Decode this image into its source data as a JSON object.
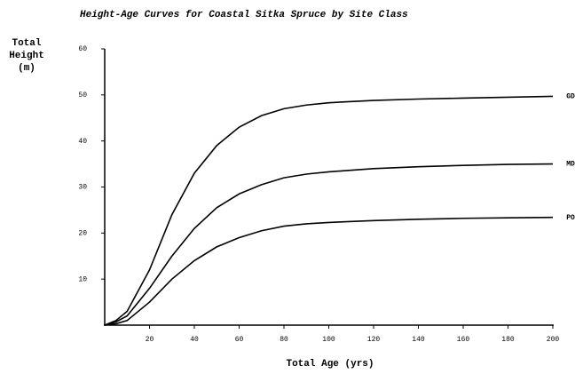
{
  "chart_data": {
    "type": "line",
    "title": "Height-Age Curves for Coastal Sitka Spruce by Site Class",
    "x_label": "Total Age (yrs)",
    "y_label": [
      "Total",
      "Height",
      "(m)"
    ],
    "x": [
      0,
      5,
      10,
      20,
      30,
      40,
      50,
      60,
      70,
      80,
      90,
      100,
      120,
      140,
      160,
      180,
      200
    ],
    "series": [
      {
        "name": "GD",
        "color": "#000000",
        "values": [
          0,
          1,
          3,
          12,
          24,
          33,
          39,
          43,
          45.5,
          47,
          47.8,
          48.3,
          48.8,
          49.1,
          49.3,
          49.5,
          49.7
        ]
      },
      {
        "name": "MD",
        "color": "#000000",
        "values": [
          0,
          0.7,
          2,
          8,
          15,
          21,
          25.5,
          28.5,
          30.5,
          32,
          32.8,
          33.3,
          34,
          34.4,
          34.7,
          34.9,
          35
        ]
      },
      {
        "name": "PO",
        "color": "#000000",
        "values": [
          0,
          0.3,
          1,
          5,
          10,
          14,
          17,
          19,
          20.5,
          21.5,
          22,
          22.3,
          22.7,
          23,
          23.2,
          23.3,
          23.4
        ]
      }
    ],
    "xlim": [
      0,
      200
    ],
    "xticks": [
      20,
      40,
      60,
      80,
      100,
      120,
      140,
      160,
      180,
      200
    ],
    "ylim": [
      0,
      60
    ],
    "yticks": [
      10,
      20,
      30,
      40,
      50,
      60
    ]
  }
}
